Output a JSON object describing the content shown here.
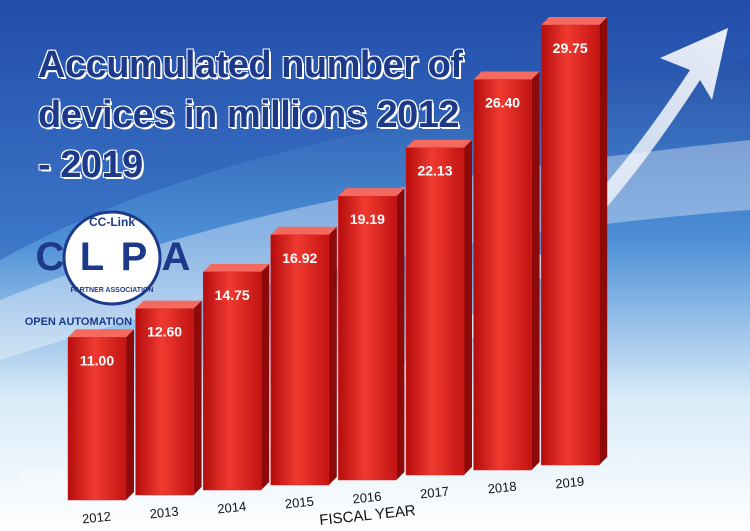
{
  "chart_data": {
    "type": "bar3d",
    "title": "Accumulated number of devices in millions 2012 - 2019",
    "xlabel": "FISCAL YEAR",
    "categories": [
      "2012",
      "2013",
      "2014",
      "2015",
      "2016",
      "2017",
      "2018",
      "2019"
    ],
    "values": [
      11.0,
      12.6,
      14.75,
      16.92,
      19.19,
      22.13,
      26.4,
      29.75
    ],
    "value_labels": [
      "11.00",
      "12.60",
      "14.75",
      "16.92",
      "19.19",
      "22.13",
      "26.40",
      "29.75"
    ],
    "color": "#e0201e"
  },
  "logo": {
    "top": "CC-Link",
    "letters": [
      "C",
      "L",
      "P",
      "A"
    ],
    "ring": "PARTNER ASSOCIATION",
    "tagline": "OPEN AUTOMATION NETWORKS"
  }
}
